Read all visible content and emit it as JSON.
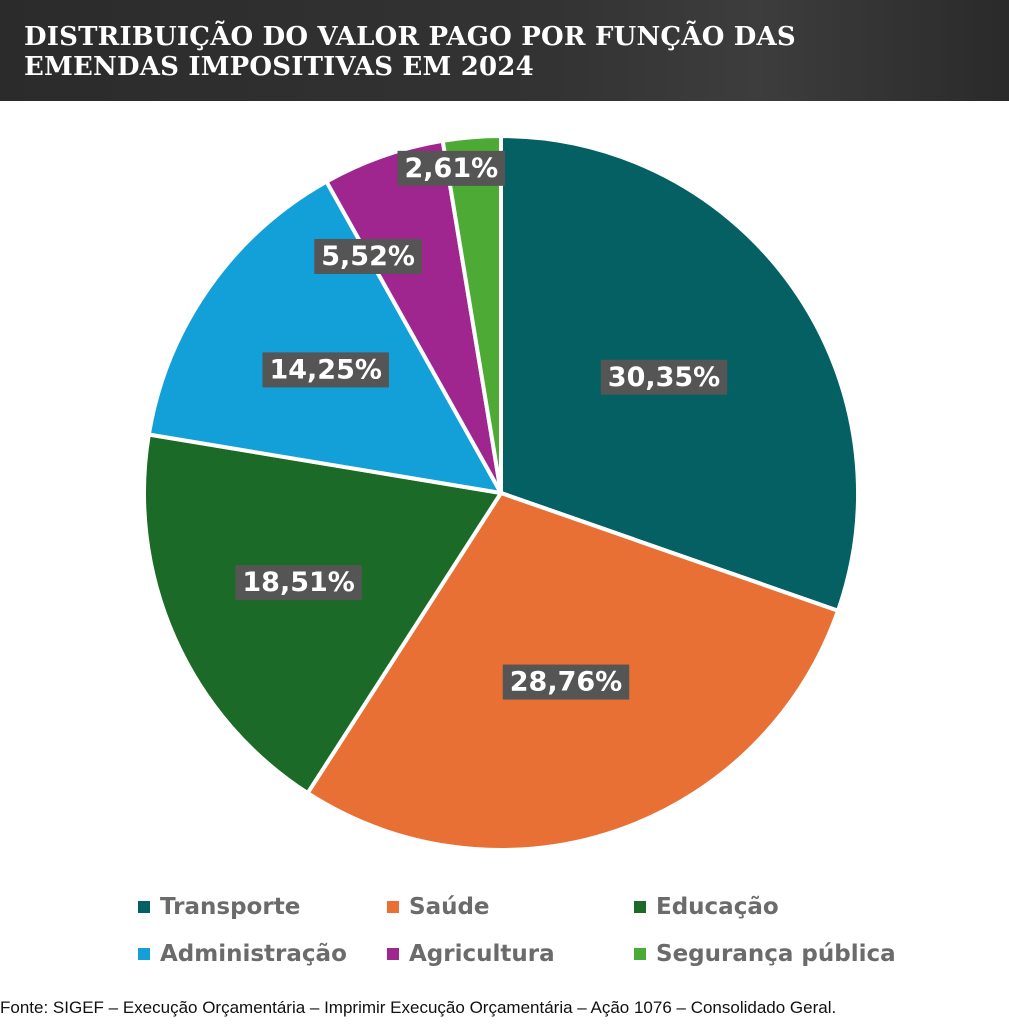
{
  "header": {
    "title": "DISTRIBUIÇÃO DO VALOR PAGO POR FUNÇÃO DAS EMENDAS IMPOSITIVAS EM 2024"
  },
  "chart_data": {
    "type": "pie",
    "title": "DISTRIBUIÇÃO DO VALOR PAGO POR FUNÇÃO DAS EMENDAS IMPOSITIVAS EM 2024",
    "categories": [
      "Transporte",
      "Saúde",
      "Educação",
      "Administração",
      "Agricultura",
      "Segurança pública"
    ],
    "values": [
      30.35,
      28.76,
      18.51,
      14.25,
      5.52,
      2.61
    ],
    "labels": [
      "30,35%",
      "28,76%",
      "18,51%",
      "14,25%",
      "5,52%",
      "2,61%"
    ],
    "colors": [
      "#046063",
      "#e87034",
      "#1b6a27",
      "#13a0d8",
      "#a0268f",
      "#4daa35"
    ],
    "legend_position": "bottom",
    "label_box_color": "#555555"
  },
  "legend": {
    "items": [
      {
        "label": "Transporte",
        "color": "#046063"
      },
      {
        "label": "Saúde",
        "color": "#e87034"
      },
      {
        "label": "Educação",
        "color": "#1b6a27"
      },
      {
        "label": "Administração",
        "color": "#13a0d8"
      },
      {
        "label": "Agricultura",
        "color": "#a0268f"
      },
      {
        "label": "Segurança pública",
        "color": "#4daa35"
      }
    ]
  },
  "source": {
    "text": "Fonte: SIGEF – Execução Orçamentária – Imprimir Execução Orçamentária – Ação 1076 – Consolidado Geral."
  }
}
